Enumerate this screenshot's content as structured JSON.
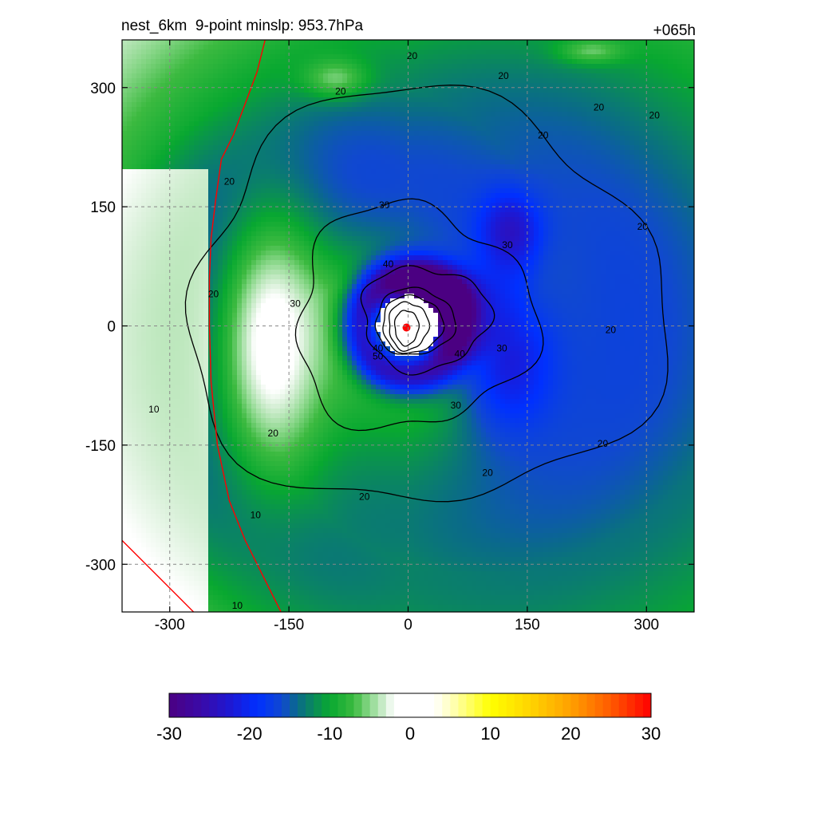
{
  "chart_data": {
    "type": "heatmap",
    "title_left": "nest_6km  9-point minslp: 953.7hPa",
    "title_right": "+065h",
    "x_ticks": [
      -300,
      -150,
      0,
      150,
      300
    ],
    "y_ticks": [
      300,
      150,
      0,
      -150,
      -300
    ],
    "xlim": [
      -360,
      360
    ],
    "ylim": [
      -360,
      360
    ],
    "grid": true,
    "colorbar": {
      "ticks": [
        -30,
        -20,
        -10,
        0,
        10,
        20,
        30
      ],
      "range": [
        -30,
        30
      ],
      "stops": [
        {
          "v": -30,
          "color": "#4b0082"
        },
        {
          "v": -26,
          "color": "#3a0aa8"
        },
        {
          "v": -22,
          "color": "#1a1ad8"
        },
        {
          "v": -19,
          "color": "#0030ff"
        },
        {
          "v": -16,
          "color": "#1048d0"
        },
        {
          "v": -14,
          "color": "#0a6a8a"
        },
        {
          "v": -12,
          "color": "#0a8a5a"
        },
        {
          "v": -10,
          "color": "#08a830"
        },
        {
          "v": -7,
          "color": "#3cba40"
        },
        {
          "v": -5,
          "color": "#8cd88c"
        },
        {
          "v": -3,
          "color": "#d8f0d8"
        },
        {
          "v": -2,
          "color": "#ffffff"
        },
        {
          "v": 3,
          "color": "#ffffff"
        },
        {
          "v": 5,
          "color": "#ffffc0"
        },
        {
          "v": 10,
          "color": "#ffff00"
        },
        {
          "v": 15,
          "color": "#ffd400"
        },
        {
          "v": 20,
          "color": "#ffa000"
        },
        {
          "v": 25,
          "color": "#ff5a00"
        },
        {
          "v": 30,
          "color": "#ff0000"
        }
      ]
    },
    "contour_labels": [
      {
        "text": "20",
        "x": 5,
        "y": 340
      },
      {
        "text": "20",
        "x": 120,
        "y": 315
      },
      {
        "text": "20",
        "x": 240,
        "y": 275
      },
      {
        "text": "20",
        "x": 310,
        "y": 265
      },
      {
        "text": "20",
        "x": -85,
        "y": 295
      },
      {
        "text": "20",
        "x": 170,
        "y": 240
      },
      {
        "text": "20",
        "x": -225,
        "y": 182
      },
      {
        "text": "20",
        "x": 295,
        "y": 125
      },
      {
        "text": "20",
        "x": -245,
        "y": 40
      },
      {
        "text": "20",
        "x": 255,
        "y": -5
      },
      {
        "text": "20",
        "x": -170,
        "y": -135
      },
      {
        "text": "20",
        "x": 100,
        "y": -185
      },
      {
        "text": "20",
        "x": -55,
        "y": -215
      },
      {
        "text": "20",
        "x": 245,
        "y": -148
      },
      {
        "text": "30",
        "x": -30,
        "y": 152
      },
      {
        "text": "30",
        "x": 125,
        "y": 102
      },
      {
        "text": "30",
        "x": -142,
        "y": 28
      },
      {
        "text": "30",
        "x": 118,
        "y": -28
      },
      {
        "text": "30",
        "x": 60,
        "y": -100
      },
      {
        "text": "40",
        "x": -25,
        "y": 78
      },
      {
        "text": "40",
        "x": -38,
        "y": -28
      },
      {
        "text": "40",
        "x": 65,
        "y": -35
      },
      {
        "text": "50",
        "x": -38,
        "y": -38
      },
      {
        "text": "10",
        "x": -320,
        "y": -105
      },
      {
        "text": "10",
        "x": -192,
        "y": -238
      },
      {
        "text": "10",
        "x": -215,
        "y": -352
      }
    ],
    "storm_center": {
      "x": -2,
      "y": -2
    }
  }
}
